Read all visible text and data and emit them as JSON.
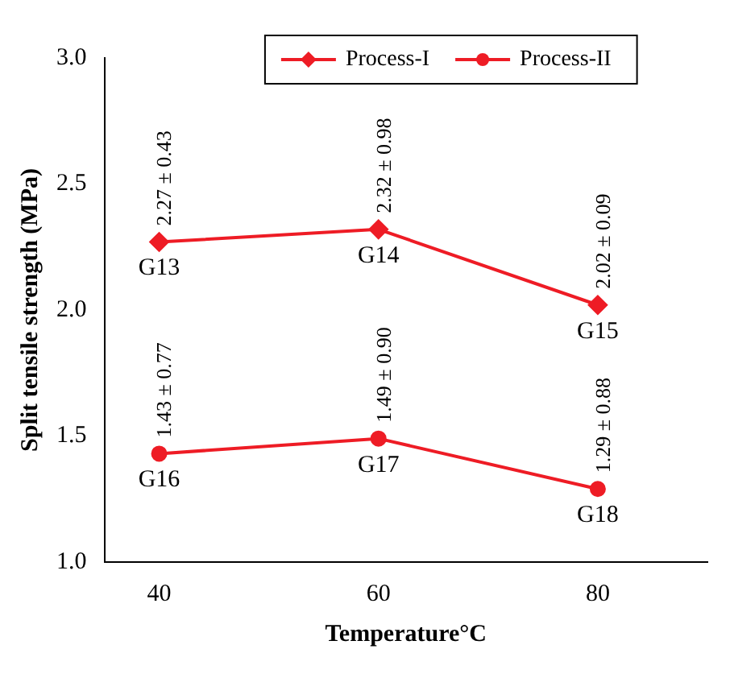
{
  "chart_data": {
    "type": "line",
    "xlabel": "Temperature°C",
    "ylabel": "Split tensile strength (MPa)",
    "x": [
      40,
      60,
      80
    ],
    "series": [
      {
        "name": "Process-I",
        "color": "#ee1c25",
        "marker": "diamond",
        "values": [
          2.27,
          2.32,
          2.02
        ],
        "value_labels": [
          "2.27 ± 0.43",
          "2.32 ± 0.98",
          "2.02 ± 0.09"
        ]
      },
      {
        "name": "Process-II",
        "color": "#ee1c25",
        "marker": "circle",
        "values": [
          1.43,
          1.49,
          1.29
        ],
        "value_labels": [
          "1.43 ± 0.77",
          "1.49 ± 0.90",
          "1.29 ± 0.88"
        ]
      }
    ],
    "annotations": [
      {
        "text": "G13",
        "x": 40,
        "y": 2.27
      },
      {
        "text": "G14",
        "x": 60,
        "y": 2.32
      },
      {
        "text": "G15",
        "x": 80,
        "y": 2.02
      },
      {
        "text": "G16",
        "x": 40,
        "y": 1.43
      },
      {
        "text": "G17",
        "x": 60,
        "y": 1.49
      },
      {
        "text": "G18",
        "x": 80,
        "y": 1.29
      }
    ],
    "xlim": [
      35,
      90
    ],
    "xticks": [
      40,
      60,
      80
    ],
    "ylim": [
      1,
      3
    ],
    "yticks": [
      {
        "value": 1,
        "label": "1.0"
      },
      {
        "value": 1.5,
        "label": "1.5"
      },
      {
        "value": 2,
        "label": "2.0"
      },
      {
        "value": 2.5,
        "label": "2.5"
      },
      {
        "value": 3,
        "label": "3.0"
      }
    ],
    "grid": false,
    "legend": "top"
  }
}
